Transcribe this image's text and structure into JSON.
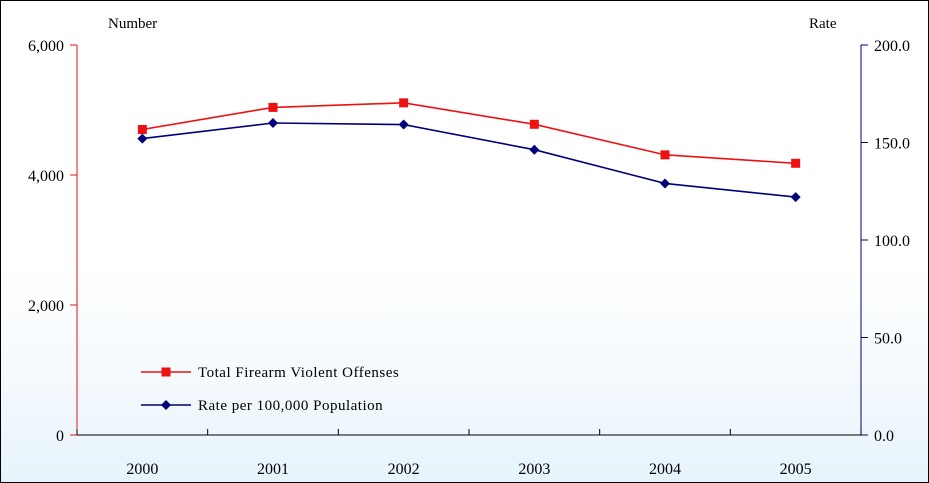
{
  "chart_data": {
    "type": "line",
    "categories": [
      "2000",
      "2001",
      "2002",
      "2003",
      "2004",
      "2005"
    ],
    "series": [
      {
        "name": "Total Firearm Violent Offenses",
        "axis": "left",
        "color": "#ee1111",
        "marker": "square",
        "values": [
          4700,
          5040,
          5110,
          4780,
          4310,
          4180
        ]
      },
      {
        "name": "Rate per 100,000 Population",
        "axis": "right",
        "color": "#00007a",
        "marker": "diamond",
        "values": [
          152.0,
          160.0,
          159.2,
          146.3,
          129.0,
          122.0
        ]
      }
    ],
    "y_left": {
      "label": "Number",
      "ylim": [
        0,
        6000
      ],
      "ticks": [
        0,
        2000,
        4000,
        6000
      ],
      "tick_labels": [
        "0",
        "2,000",
        "4,000",
        "6,000"
      ],
      "color": "#ee1111"
    },
    "y_right": {
      "label": "Rate",
      "ylim": [
        0,
        200
      ],
      "ticks": [
        0,
        50,
        100,
        150,
        200
      ],
      "tick_labels": [
        "0.0",
        "50.0",
        "100.0",
        "150.0",
        "200.0"
      ],
      "color": "#00007a"
    },
    "title": "",
    "xlabel": "",
    "grid": false,
    "legend_position": "bottom-left"
  }
}
